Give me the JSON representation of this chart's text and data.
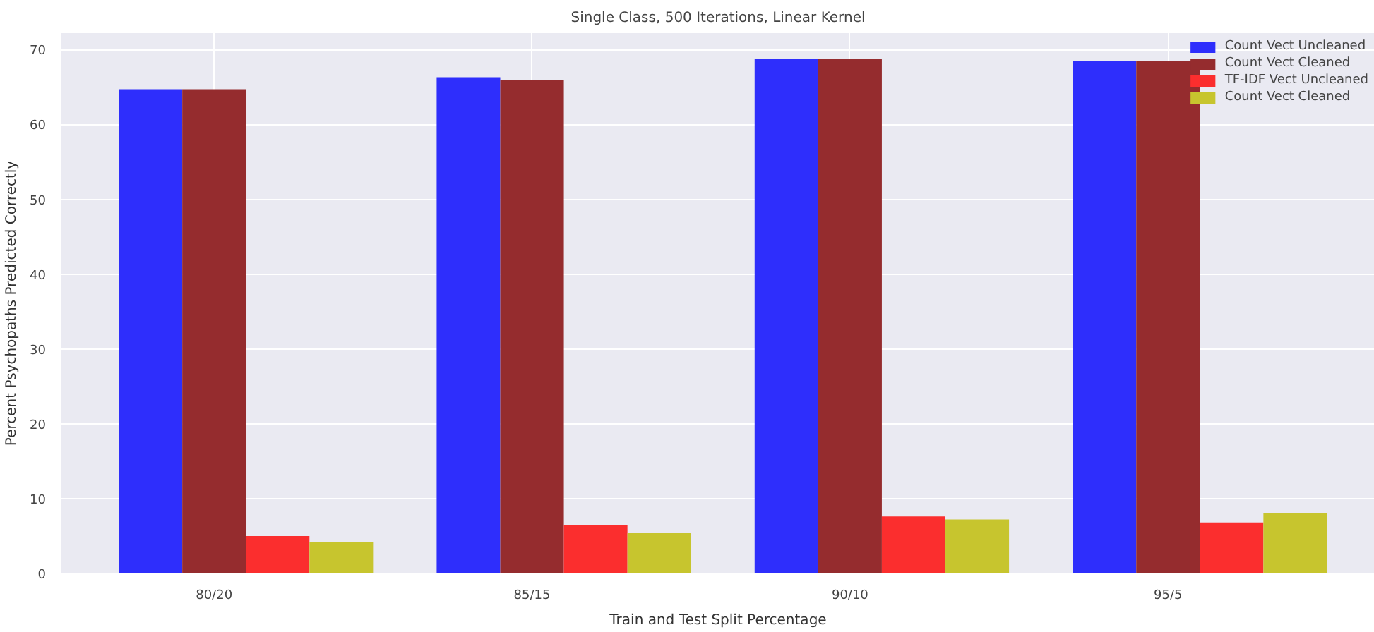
{
  "chart_data": {
    "type": "bar",
    "title": "Single Class, 500 Iterations, Linear Kernel",
    "xlabel": "Train and Test Split Percentage",
    "ylabel": "Percent Psychopaths Predicted Correctly",
    "categories": [
      "80/20",
      "85/15",
      "90/10",
      "95/5"
    ],
    "series": [
      {
        "name": "Count Vect Uncleaned",
        "color": "#2e2efc",
        "values": [
          64.7,
          66.3,
          68.8,
          68.5
        ]
      },
      {
        "name": "Count Vect Cleaned",
        "color": "#952c2e",
        "values": [
          64.7,
          65.9,
          68.8,
          68.5
        ]
      },
      {
        "name": "TF-IDF Vect Uncleaned",
        "color": "#fb2e2e",
        "values": [
          5.0,
          6.5,
          7.6,
          6.8
        ]
      },
      {
        "name": "Count Vect Cleaned",
        "color": "#c7c52e",
        "values": [
          4.2,
          5.4,
          7.2,
          8.1
        ]
      }
    ],
    "ylim": [
      0,
      72.2
    ],
    "yticks": [
      0,
      10,
      20,
      30,
      40,
      50,
      60,
      70
    ],
    "grid": true,
    "legend": "top right"
  }
}
